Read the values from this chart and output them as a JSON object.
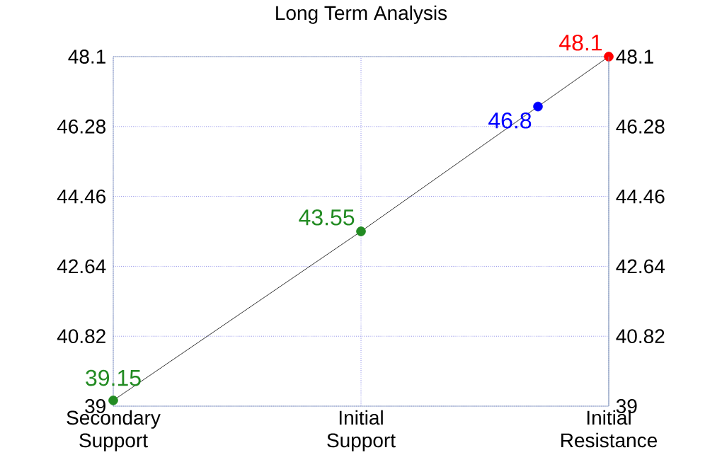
{
  "chart_data": {
    "type": "line",
    "title": "Long Term Analysis",
    "categories": [
      "Secondary Support",
      null,
      null,
      null,
      null,
      null,
      null,
      "Initial Support",
      null,
      null,
      null,
      null,
      null,
      null,
      "Initial Resistance"
    ],
    "values": [
      39.15,
      null,
      null,
      null,
      null,
      null,
      null,
      43.55,
      null,
      null,
      null,
      null,
      46.8,
      null,
      48.1
    ],
    "color": "#000000",
    "colors": [
      "#228b22",
      null,
      null,
      null,
      null,
      null,
      null,
      "#228b22",
      null,
      null,
      null,
      null,
      "#0000ff",
      null,
      "#ff0000"
    ],
    "marker": "circle",
    "data_labels": true,
    "grid": true,
    "ylim": [
      39,
      48.1
    ],
    "yticks": [
      39,
      40.82,
      42.64,
      44.46,
      46.28,
      48.1
    ],
    "y2lim": [
      39,
      48.1
    ],
    "y2ticks": [
      39,
      40.82,
      42.64,
      44.46,
      46.28,
      48.1
    ]
  }
}
